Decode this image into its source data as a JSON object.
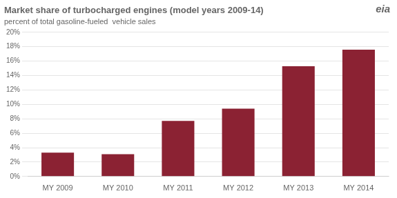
{
  "chart_data": {
    "type": "bar",
    "title": "Market share of turbocharged engines (model years 2009-14)",
    "subtitle": "percent of total gasoline-fueled  vehicle sales",
    "annotations": [
      "eia"
    ],
    "categories": [
      "MY 2009",
      "MY 2010",
      "MY 2011",
      "MY 2012",
      "MY 2013",
      "MY 2014"
    ],
    "values": [
      0.033,
      0.031,
      0.077,
      0.094,
      0.153,
      0.176
    ],
    "color": "#8b2233",
    "ylim": [
      0,
      0.2
    ],
    "yticks": [
      {
        "value": 0.0,
        "label": "0%"
      },
      {
        "value": 0.02,
        "label": "2%"
      },
      {
        "value": 0.04,
        "label": "4%"
      },
      {
        "value": 0.06,
        "label": "6%"
      },
      {
        "value": 0.08,
        "label": "8%"
      },
      {
        "value": 0.1,
        "label": "10%"
      },
      {
        "value": 0.12,
        "label": "12%"
      },
      {
        "value": 0.14,
        "label": "14%"
      },
      {
        "value": 0.16,
        "label": "16%"
      },
      {
        "value": 0.18,
        "label": "18%"
      },
      {
        "value": 0.2,
        "label": "20%"
      }
    ],
    "grid": true
  }
}
